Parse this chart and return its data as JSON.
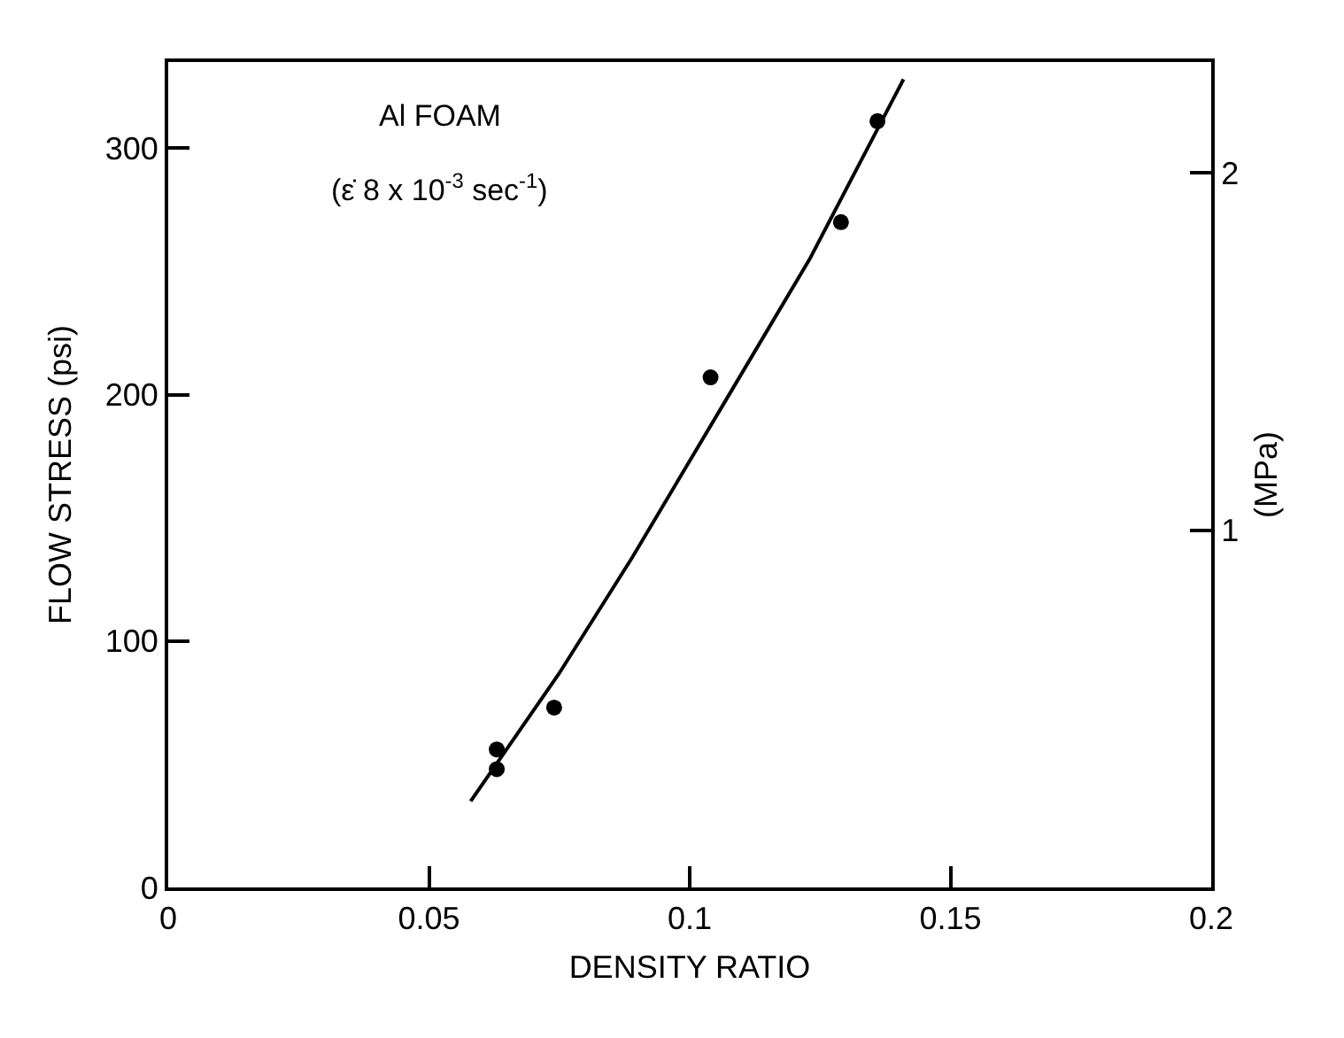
{
  "chart_data": {
    "type": "scatter",
    "xlabel": "DENSITY RATIO",
    "ylabel": "FLOW STRESS (psi)",
    "y2label": "(MPa)",
    "annotations": [
      "Al FOAM",
      "(ε̇ 8 x 10$^{-3}$ sec$^{-1}$)"
    ],
    "series": [
      {
        "type": "scatter",
        "color": "#000000",
        "marker": "circle",
        "x": [
          0.063,
          0.063,
          0.074,
          0.104,
          0.129,
          0.136
        ],
        "values": [
          56,
          48,
          73,
          207,
          270,
          311
        ]
      },
      {
        "type": "line",
        "color": "#000000",
        "line_style": "solid",
        "marker": "none",
        "x": [
          0.058,
          0.075,
          0.089,
          0.107,
          0.123,
          0.141
        ],
        "values": [
          35,
          87,
          134,
          198,
          255,
          328
        ]
      }
    ],
    "xlim": [
      0,
      0.2
    ],
    "xticks": [
      0,
      0.05,
      0.1,
      0.15,
      0.2
    ],
    "ylim": [
      0,
      335
    ],
    "yticks": [
      0,
      100,
      200,
      300
    ],
    "y2lim": [
      0,
      2.31
    ],
    "y2ticks": [
      1,
      2
    ],
    "grid": false
  }
}
